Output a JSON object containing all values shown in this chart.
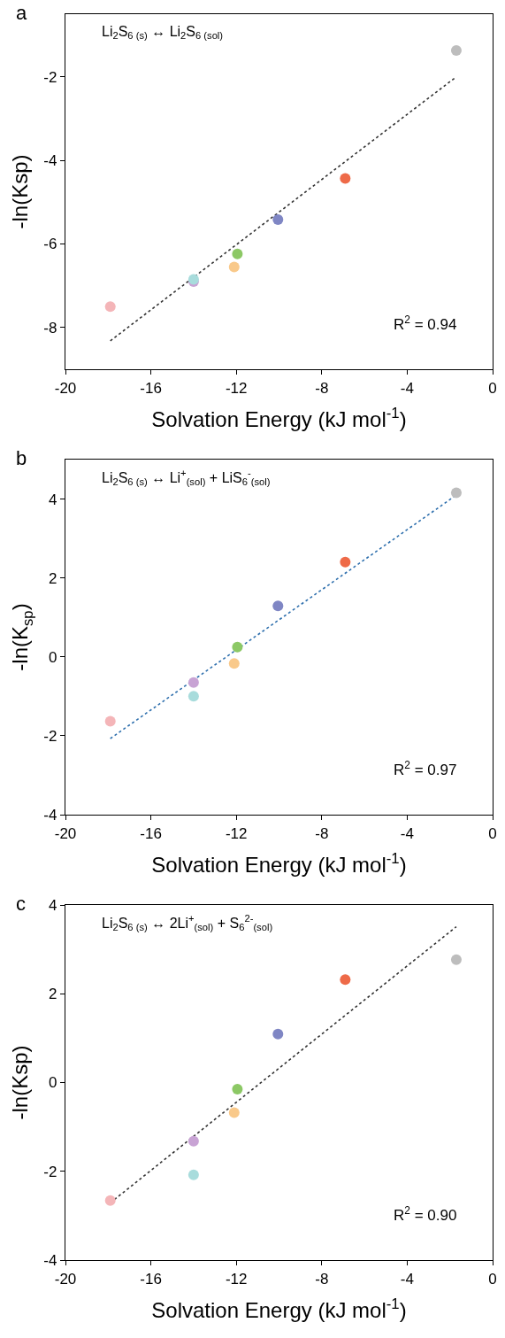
{
  "chart_data": [
    {
      "type": "scatter",
      "xlabel": "Solvation Energy (kJ mol$^{-1}$)",
      "ylabel": "-ln(Ksp)",
      "marker": "circle",
      "grid": false,
      "legend": false,
      "annotations": [
        "a",
        "Li$_{2}$S$_{6 (s)}$ ↔ Li$_{2}$S$_{6 (sol)}$",
        "R$^{2}$ = 0.94"
      ],
      "xlim": [
        -20,
        0
      ],
      "xticks": [
        -20,
        -16,
        -12,
        -8,
        -4,
        0
      ],
      "ylim": [
        -9,
        -0.5
      ],
      "yticks": [
        -8,
        -6,
        -4,
        -2
      ],
      "series": [
        {
          "type": "line",
          "marker": "none",
          "color": "#333333",
          "line_style": "dotted",
          "x": [
            -17.9,
            -1.7
          ],
          "values": [
            -8.32,
            -2.0
          ]
        },
        {
          "x": [
            -17.9,
            -14.0,
            -14.0,
            -12.1,
            -11.95,
            -10.05,
            -6.9,
            -1.7
          ],
          "values": [
            -7.5,
            -6.9,
            -6.85,
            -6.55,
            -6.24,
            -5.42,
            -4.43,
            -1.37
          ],
          "colors": [
            "#f4b5b8",
            "#c8a3d4",
            "#a8dcdc",
            "#f9c98a",
            "#8cc865",
            "#7f86c4",
            "#ee6a48",
            "#bdbdbd"
          ]
        }
      ]
    },
    {
      "type": "scatter",
      "xlabel": "Solvation Energy (kJ mol$^{-1}$)",
      "ylabel": "-ln(K$_{sp}$)",
      "marker": "circle",
      "grid": false,
      "legend": false,
      "annotations": [
        "b",
        "Li$_{2}$S$_{6 (s)}$ ↔ Li$^{+}$$_{(sol)}$ + LiS$_{6}$$^{-}$$_{(sol)}$",
        "R$^{2}$ = 0.97"
      ],
      "xlim": [
        -20,
        0
      ],
      "xticks": [
        -20,
        -16,
        -12,
        -8,
        -4,
        0
      ],
      "ylim": [
        -4,
        5
      ],
      "yticks": [
        -4,
        -2,
        0,
        2,
        4
      ],
      "series": [
        {
          "type": "line",
          "marker": "none",
          "color": "#2e6fad",
          "line_style": "dotted",
          "x": [
            -17.9,
            -1.7
          ],
          "values": [
            -2.07,
            4.1
          ]
        },
        {
          "x": [
            -17.9,
            -14.0,
            -14.0,
            -12.1,
            -11.95,
            -10.05,
            -6.9,
            -1.7
          ],
          "values": [
            -1.63,
            -0.65,
            -1.0,
            -0.17,
            0.25,
            1.29,
            2.4,
            4.16
          ],
          "colors": [
            "#f4b5b8",
            "#c8a3d4",
            "#a8dcdc",
            "#f9c98a",
            "#8cc865",
            "#7f86c4",
            "#ee6a48",
            "#bdbdbd"
          ]
        }
      ]
    },
    {
      "type": "scatter",
      "xlabel": "Solvation Energy (kJ mol$^{-1}$)",
      "ylabel": "-ln(Ksp)",
      "marker": "circle",
      "grid": false,
      "legend": false,
      "annotations": [
        "c",
        "Li$_{2}$S$_{6 (s)}$ ↔ 2Li$^{+}$$_{(sol)}$ + S$_{6}$$^{2-}$$_{(sol)}$",
        "R$^{2}$ = 0.90"
      ],
      "xlim": [
        -20,
        0
      ],
      "xticks": [
        -20,
        -16,
        -12,
        -8,
        -4,
        0
      ],
      "ylim": [
        -4,
        4
      ],
      "yticks": [
        -4,
        -2,
        0,
        2,
        4
      ],
      "series": [
        {
          "type": "line",
          "marker": "none",
          "color": "#333333",
          "line_style": "dotted",
          "x": [
            -17.9,
            -1.7
          ],
          "values": [
            -2.71,
            3.51
          ]
        },
        {
          "x": [
            -17.9,
            -14.0,
            -14.0,
            -12.1,
            -11.95,
            -10.05,
            -6.9,
            -1.7
          ],
          "values": [
            -2.66,
            -1.32,
            -2.08,
            -0.68,
            -0.15,
            1.09,
            2.32,
            2.77
          ],
          "colors": [
            "#f4b5b8",
            "#c8a3d4",
            "#a8dcdc",
            "#f9c98a",
            "#8cc865",
            "#7f86c4",
            "#ee6a48",
            "#bdbdbd"
          ]
        }
      ]
    }
  ]
}
